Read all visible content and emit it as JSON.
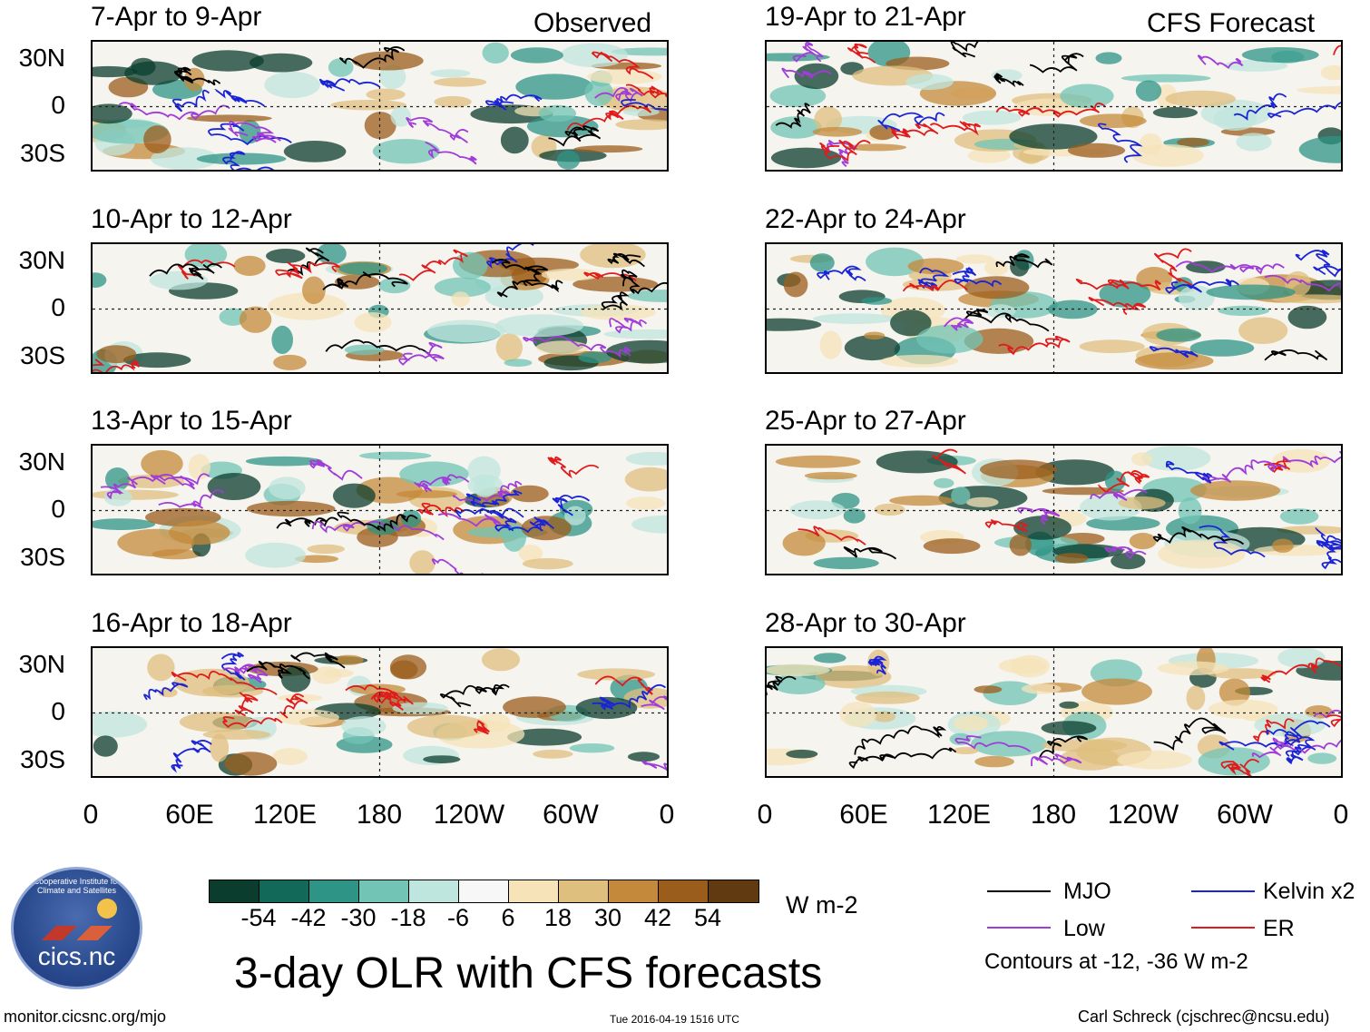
{
  "panels": [
    {
      "title": "7-Apr to 9-Apr",
      "corner_label": "Observed"
    },
    {
      "title": "10-Apr to 12-Apr",
      "corner_label": ""
    },
    {
      "title": "13-Apr to 15-Apr",
      "corner_label": ""
    },
    {
      "title": "16-Apr to 18-Apr",
      "corner_label": ""
    },
    {
      "title": "19-Apr to 21-Apr",
      "corner_label": "CFS Forecast"
    },
    {
      "title": "22-Apr to 24-Apr",
      "corner_label": ""
    },
    {
      "title": "25-Apr to 27-Apr",
      "corner_label": ""
    },
    {
      "title": "28-Apr to 30-Apr",
      "corner_label": ""
    }
  ],
  "lat_labels": [
    "30N",
    "0",
    "30S"
  ],
  "lon_labels": [
    "0",
    "60E",
    "120E",
    "180",
    "120W",
    "60W",
    "0"
  ],
  "colorbar": {
    "colors": [
      "#0b3d2e",
      "#12695a",
      "#2e9486",
      "#72c4b5",
      "#bfe6de",
      "#f7f7f7",
      "#f6e3b8",
      "#dfbf7d",
      "#c4893a",
      "#9b5d1c",
      "#623a12"
    ],
    "labels": [
      "-54",
      "-42",
      "-30",
      "-18",
      "-6",
      "6",
      "18",
      "30",
      "42",
      "54"
    ],
    "units": "W m-2"
  },
  "title": "3-day OLR with CFS forecasts",
  "legend": [
    {
      "label": "MJO",
      "color": "#000000"
    },
    {
      "label": "Kelvin x2",
      "color": "#1a24d6"
    },
    {
      "label": "Low",
      "color": "#a03cd8"
    },
    {
      "label": "ER",
      "color": "#e01b1b"
    }
  ],
  "contours_note": "Contours at -12, -36 W m-2",
  "logo": {
    "text": "cics.nc",
    "arc_text": "Cooperative Institute for Climate and Satellites"
  },
  "footer": {
    "left": "monitor.cicsnc.org/mjo",
    "center": "Tue 2016-04-19 1516 UTC",
    "right": "Carl Schreck (cjschrec@ncsu.edu)"
  }
}
